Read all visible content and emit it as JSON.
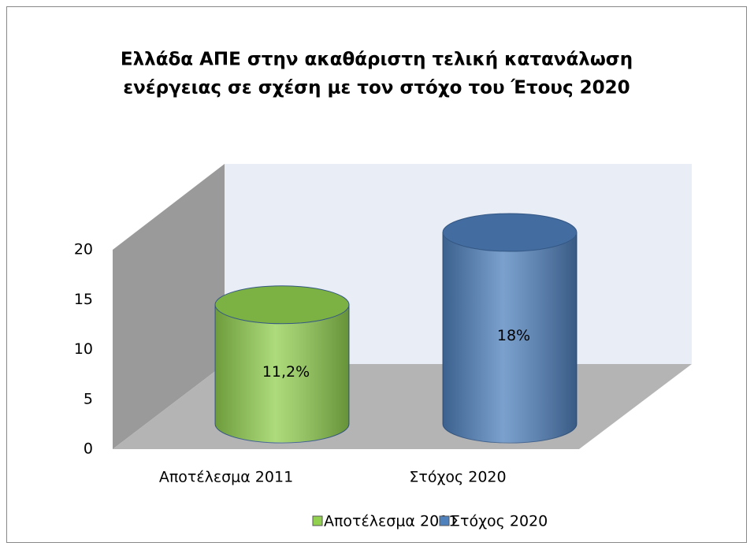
{
  "chart_data": {
    "type": "bar3d",
    "title": [
      "Ελλάδα  ΑΠΕ  στην ακαθάριστη τελική κατανάλωση",
      "ενέργειας σε σχέση με τον στόχο του Έτους 2020"
    ],
    "categories": [
      "Αποτέλεσμα 2011",
      "Στόχος 2020"
    ],
    "values": [
      11.2,
      18
    ],
    "value_labels": [
      "11,2%",
      "18%"
    ],
    "colors": [
      "#92d050",
      "#4f81bd"
    ],
    "ylim": [
      0,
      20
    ],
    "yticks": [
      0,
      5,
      10,
      15,
      20
    ],
    "legend": "bottom"
  }
}
